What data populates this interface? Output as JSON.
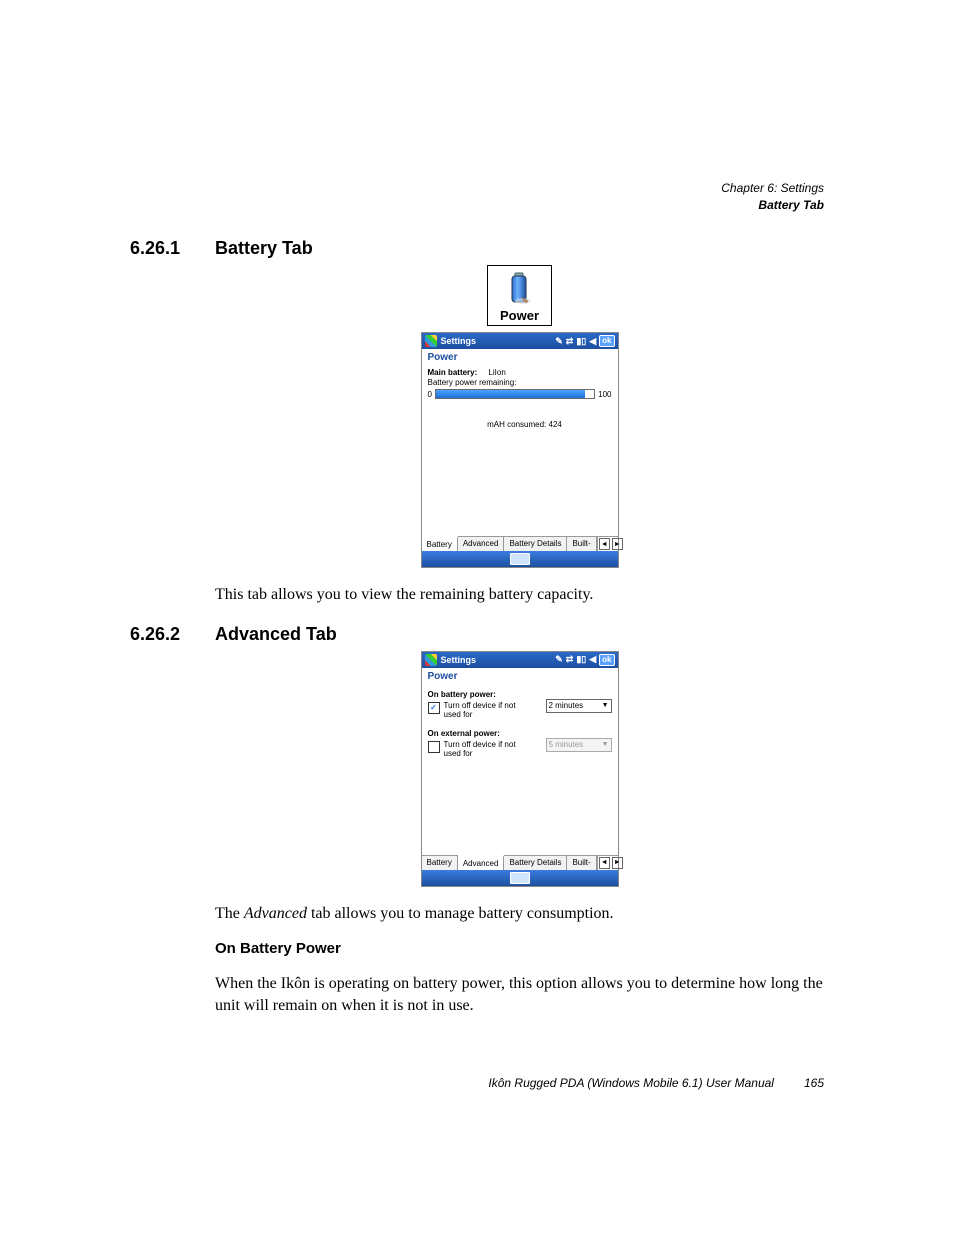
{
  "header": {
    "chapter_line": "Chapter 6:  Settings",
    "section_line": "Battery Tab"
  },
  "section1": {
    "number": "6.26.1",
    "title": "Battery Tab",
    "icon_caption": "Power",
    "caption_text": "This tab allows you to view the remaining battery capacity."
  },
  "pda1": {
    "titlebar": "Settings",
    "ok": "ok",
    "subtitle": "Power",
    "main_battery_label": "Main battery:",
    "main_battery_value": "LiIon",
    "remaining_label": "Battery power remaining:",
    "progress_min": "0",
    "progress_max": "100",
    "progress_fill_percent": 94,
    "consumed_label": "mAH consumed:  424",
    "tabs": [
      "Battery",
      "Advanced",
      "Battery Details",
      "Built-"
    ],
    "active_tab": 0
  },
  "section2": {
    "number": "6.26.2",
    "title": "Advanced Tab",
    "caption_prefix": "The ",
    "caption_italic": "Advanced",
    "caption_suffix": " tab allows you to manage battery consumption."
  },
  "pda2": {
    "titlebar": "Settings",
    "ok": "ok",
    "subtitle": "Power",
    "batt_label": "On battery power:",
    "batt_check_label": "Turn off device if not used for",
    "batt_checked": true,
    "batt_select": "2 minutes",
    "ext_label": "On external power:",
    "ext_check_label": "Turn off device if not used for",
    "ext_checked": false,
    "ext_select": "5 minutes",
    "tabs": [
      "Battery",
      "Advanced",
      "Battery Details",
      "Built-"
    ],
    "active_tab": 1
  },
  "sub": {
    "heading": "On Battery Power",
    "text": "When the Ikôn is operating on battery power, this option allows you to determine how long the unit will remain on when it is not in use."
  },
  "footer": {
    "manual": "Ikôn Rugged PDA (Windows Mobile 6.1) User Manual",
    "page": "165"
  },
  "colors": {
    "title_gradient_top": "#2a69c7",
    "title_gradient_bottom": "#1d4fa0",
    "accent_blue": "#1d4fa0"
  }
}
